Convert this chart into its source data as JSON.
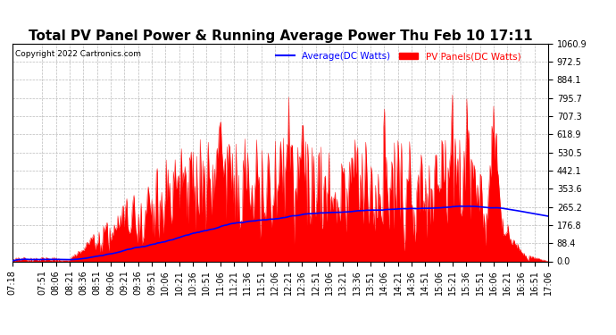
{
  "title": "Total PV Panel Power & Running Average Power Thu Feb 10 17:11",
  "copyright": "Copyright 2022 Cartronics.com",
  "legend_avg": "Average(DC Watts)",
  "legend_pv": "PV Panels(DC Watts)",
  "ylabel_values": [
    0.0,
    88.4,
    176.8,
    265.2,
    353.6,
    442.1,
    530.5,
    618.9,
    707.3,
    795.7,
    884.1,
    972.5,
    1060.9
  ],
  "ymax": 1060.9,
  "ymin": 0.0,
  "bg_color": "#ffffff",
  "grid_color": "#aaaaaa",
  "pv_color": "red",
  "avg_color": "blue",
  "title_fontsize": 11,
  "tick_fontsize": 7,
  "x_tick_labels": [
    "07:18",
    "07:51",
    "08:06",
    "08:21",
    "08:36",
    "08:51",
    "09:06",
    "09:21",
    "09:36",
    "09:51",
    "10:06",
    "10:21",
    "10:36",
    "10:51",
    "11:06",
    "11:21",
    "11:36",
    "11:51",
    "12:06",
    "12:21",
    "12:36",
    "12:51",
    "13:06",
    "13:21",
    "13:36",
    "13:51",
    "14:06",
    "14:21",
    "14:36",
    "14:51",
    "15:06",
    "15:21",
    "15:36",
    "15:51",
    "16:06",
    "16:21",
    "16:36",
    "16:51",
    "17:06"
  ]
}
